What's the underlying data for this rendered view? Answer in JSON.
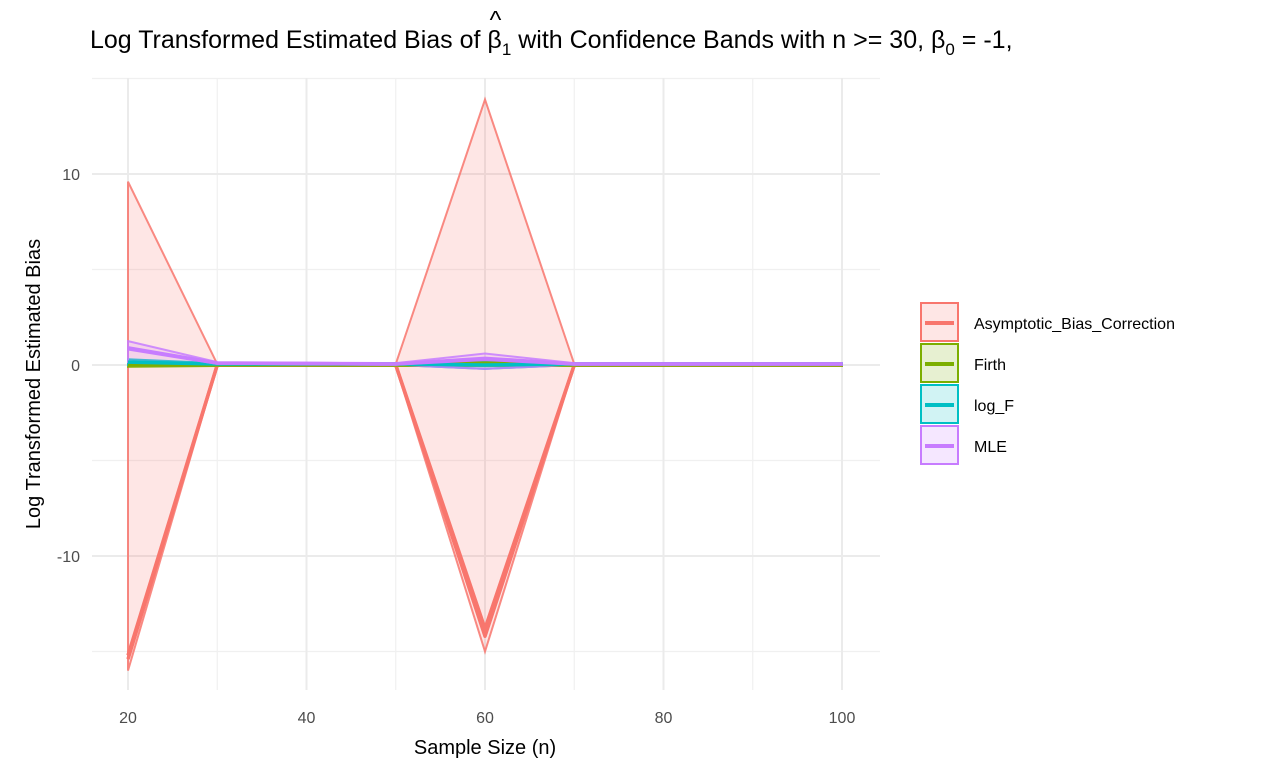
{
  "chart_data": {
    "type": "line",
    "title": {
      "prefix": "Log Transformed Estimated Bias of ",
      "beta_symbol": "β",
      "hat_symbol": "^",
      "subscript_1": "1",
      "middle": " with Confidence Bands with n >= 30, ",
      "subscript_0": "0",
      "suffix": " = -1,"
    },
    "xlabel": "Sample Size (n)",
    "ylabel": "Log Transformed Estimated Bias",
    "xlim": [
      20,
      100
    ],
    "ylim": [
      -16.5,
      15.2
    ],
    "x_ticks": [
      20,
      40,
      60,
      80,
      100
    ],
    "y_ticks": [
      -10,
      0,
      10
    ],
    "y_tick_labels": [
      "-10",
      "0",
      "10"
    ],
    "grid": true,
    "legend_position": "right",
    "x": [
      20,
      30,
      50,
      60,
      70,
      100
    ],
    "series": [
      {
        "name": "Asymptotic_Bias_Correction",
        "color": "#F8766D",
        "lines": [
          [
            -15.2,
            0.0,
            0.0,
            -13.8,
            0.0,
            0.0
          ],
          [
            -15.4,
            0.0,
            0.0,
            -14.2,
            0.0,
            0.0
          ]
        ],
        "band_upper": [
          9.6,
          0.05,
          0.05,
          13.9,
          0.05,
          0.05
        ],
        "band_lower": [
          -16.0,
          -0.05,
          -0.05,
          -15.0,
          -0.05,
          -0.05
        ]
      },
      {
        "name": "Firth",
        "color": "#7CAE00",
        "lines": [
          [
            0.0,
            0.0,
            0.0,
            0.1,
            0.0,
            0.0
          ]
        ],
        "band_upper": [
          0.1,
          0.05,
          0.05,
          0.15,
          0.05,
          0.05
        ],
        "band_lower": [
          -0.1,
          -0.05,
          -0.05,
          -0.05,
          -0.05,
          -0.05
        ]
      },
      {
        "name": "log_F",
        "color": "#00BFC4",
        "lines": [
          [
            0.15,
            0.05,
            0.05,
            0.0,
            0.05,
            0.05
          ]
        ],
        "band_upper": [
          0.3,
          0.1,
          0.1,
          0.2,
          0.1,
          0.1
        ],
        "band_lower": [
          0.0,
          0.0,
          0.0,
          -0.2,
          0.0,
          0.0
        ]
      },
      {
        "name": "MLE",
        "color": "#C77CFF",
        "lines": [
          [
            0.9,
            0.1,
            0.05,
            0.35,
            0.05,
            0.05
          ],
          [
            0.85,
            0.1,
            0.05,
            0.3,
            0.05,
            0.05
          ]
        ],
        "band_upper": [
          1.25,
          0.15,
          0.1,
          0.6,
          0.1,
          0.1
        ],
        "band_lower": [
          0.15,
          0.05,
          0.0,
          -0.2,
          0.0,
          0.0
        ]
      }
    ]
  }
}
